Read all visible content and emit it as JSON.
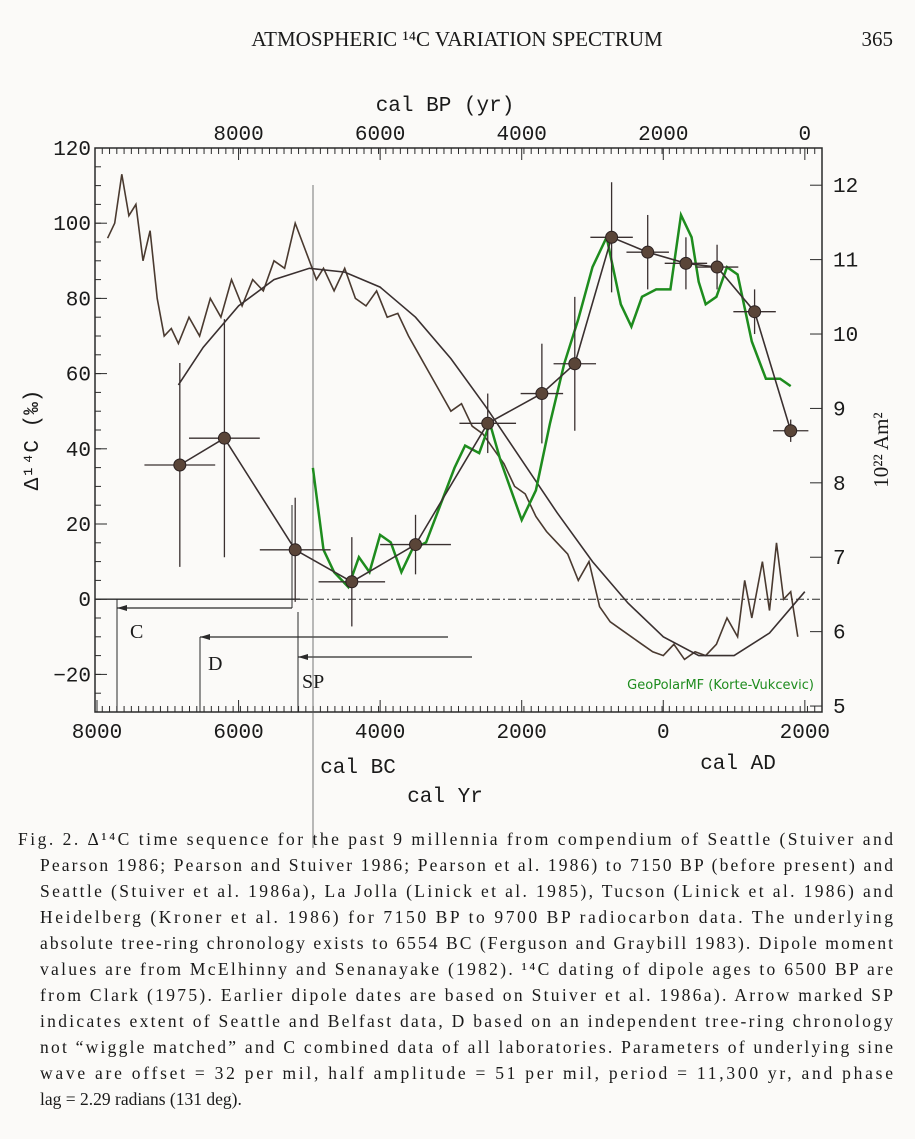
{
  "header": {
    "title": "ATMOSPHERIC ¹⁴C VARIATION SPECTRUM",
    "page": "365"
  },
  "chart_data": {
    "type": "line",
    "x_label": "cal Yr",
    "x_sub_left": "cal BC",
    "x_sub_right": "cal AD",
    "x2_label": "cal BP (yr)",
    "y_label": "Δ¹⁴C (‰)",
    "y2_label": "10²² Am²",
    "xlim": [
      -8000,
      2200
    ],
    "xticks": [
      {
        "value": -8000,
        "label": "8000"
      },
      {
        "value": -6000,
        "label": "6000"
      },
      {
        "value": -4000,
        "label": "4000"
      },
      {
        "value": -2000,
        "label": "2000"
      },
      0,
      2000
    ],
    "x2lim": [
      10000,
      -200
    ],
    "x2ticks": [
      8000,
      6000,
      4000,
      2000,
      0
    ],
    "ylim": [
      -30,
      120
    ],
    "yticks": [
      {
        "value": -20,
        "label": "−20"
      },
      0,
      20,
      40,
      60,
      80,
      100,
      120
    ],
    "y2lim": [
      4.92,
      12.5
    ],
    "y2ticks": [
      5,
      6,
      7,
      8,
      9,
      10,
      11,
      12
    ],
    "annotations": [
      "C",
      "D",
      "SP"
    ],
    "series": [
      {
        "color": "#4a3a30",
        "x": [
          -7850,
          -7750,
          -7650,
          -7550,
          -7450,
          -7350,
          -7250,
          -7150,
          -7050,
          -6950,
          -6850,
          -6700,
          -6550,
          -6400,
          -6250,
          -6100,
          -5950,
          -5800,
          -5650,
          -5500,
          -5350,
          -5200,
          -5100,
          -5000,
          -4900,
          -4800,
          -4650,
          -4500,
          -4350,
          -4200,
          -4050,
          -3900,
          -3750,
          -3600,
          -3450,
          -3300,
          -3150,
          -3000,
          -2850,
          -2700,
          -2550,
          -2400,
          -2250,
          -2100,
          -1950,
          -1800,
          -1650,
          -1500,
          -1350,
          -1200,
          -1050,
          -900,
          -750,
          -600,
          -450,
          -300,
          -150,
          0,
          150,
          300,
          450,
          600,
          750,
          900,
          1050,
          1150,
          1250,
          1400,
          1500,
          1600,
          1700,
          1800,
          1900
        ],
        "values": [
          96,
          100,
          113,
          102,
          105,
          90,
          98,
          80,
          70,
          72,
          68,
          75,
          70,
          80,
          75,
          85,
          78,
          85,
          82,
          90,
          88,
          100,
          95,
          90,
          85,
          88,
          82,
          88,
          80,
          78,
          82,
          75,
          76,
          70,
          65,
          60,
          55,
          50,
          52,
          46,
          44,
          40,
          36,
          30,
          28,
          22,
          18,
          15,
          12,
          5,
          10,
          -2,
          -6,
          -8,
          -10,
          -12,
          -14,
          -15,
          -12,
          -16,
          -14,
          -15,
          -12,
          -5,
          -10,
          5,
          -5,
          10,
          -3,
          15,
          0,
          2,
          -10
        ]
      },
      {
        "color": "#3a3030",
        "x": [
          -6850,
          -6500,
          -6000,
          -5500,
          -5000,
          -4500,
          -4000,
          -3500,
          -3000,
          -2500,
          -2000,
          -1500,
          -1000,
          -500,
          0,
          500,
          1000,
          1500,
          2000
        ],
        "values": [
          57,
          67,
          78,
          85,
          88,
          87,
          83,
          75,
          64,
          51,
          37,
          23,
          10,
          -1,
          -10,
          -15,
          -15,
          -9,
          2
        ]
      },
      {
        "name": "GeoPolarMF (Korte-Vukcevic)",
        "color": "#1e8c1e",
        "axis": "y2",
        "x": [
          -4950,
          -4800,
          -4650,
          -4450,
          -4300,
          -4150,
          -4000,
          -3850,
          -3700,
          -3550,
          -3350,
          -3150,
          -2950,
          -2800,
          -2600,
          -2450,
          -2300,
          -2150,
          -2000,
          -1800,
          -1600,
          -1400,
          -1200,
          -1000,
          -800,
          -600,
          -450,
          -300,
          -100,
          100,
          250,
          400,
          500,
          600,
          750,
          900,
          1050,
          1250,
          1450,
          1650,
          1800
        ],
        "values": [
          8.2,
          7.1,
          6.8,
          6.6,
          7.0,
          6.8,
          7.3,
          7.2,
          6.8,
          7.1,
          7.2,
          7.7,
          8.2,
          8.5,
          8.4,
          8.8,
          8.3,
          7.9,
          7.5,
          7.9,
          8.8,
          9.6,
          10.2,
          10.9,
          11.3,
          10.4,
          10.1,
          10.5,
          10.6,
          10.6,
          11.6,
          11.3,
          10.7,
          10.4,
          10.5,
          10.9,
          10.8,
          9.9,
          9.4,
          9.4,
          9.3
        ]
      },
      {
        "color": "#3a3030",
        "axis": "y2",
        "markers": true,
        "x": [
          -6830,
          -6200,
          -5200,
          -4400,
          -3500,
          -2480,
          -1715,
          -1250,
          -730,
          -220,
          320,
          760,
          1290,
          1800
        ],
        "values": [
          8.24,
          8.6,
          7.1,
          6.67,
          7.17,
          8.8,
          9.2,
          9.6,
          11.3,
          11.1,
          10.95,
          10.9,
          10.3,
          8.7
        ],
        "xerr": [
          500,
          500,
          500,
          470,
          500,
          400,
          300,
          300,
          300,
          300,
          300,
          300,
          300,
          250
        ],
        "yerr": [
          1.37,
          1.6,
          0.7,
          0.6,
          0.4,
          0.4,
          0.67,
          0.9,
          0.74,
          0.5,
          0.35,
          0.3,
          0.3,
          0.15
        ]
      }
    ]
  },
  "caption": [
    "Fig. 2. Δ¹⁴C time sequence for the past 9 millennia from compendium of Seattle (Stuiver and",
    "Pearson 1986; Pearson and Stuiver 1986; Pearson et al. 1986) to 7150 BP (before present) and",
    "Seattle (Stuiver et al. 1986a), La Jolla (Linick et al. 1985), Tucson (Linick et al. 1986) and",
    "Heidelberg (Kroner et al. 1986) for 7150 BP to 9700 BP radiocarbon data. The underlying",
    "absolute tree-ring chronology exists to 6554 BC (Ferguson and Graybill 1983). Dipole moment",
    "values are from McElhinny and Senanayake (1982). ¹⁴C dating of dipole ages to 6500 BP are",
    "from Clark (1975). Earlier dipole dates are based on Stuiver et al. 1986a). Arrow marked SP",
    "indicates extent of Seattle and Belfast data, D based on an independent tree-ring chronology",
    "not “wiggle matched” and C combined data of all laboratories. Parameters of underlying sine",
    "wave are offset = 32 per mil, half amplitude = 51 per mil, period = 11,300 yr, and phase",
    "lag = 2.29 radians (131 deg)."
  ]
}
